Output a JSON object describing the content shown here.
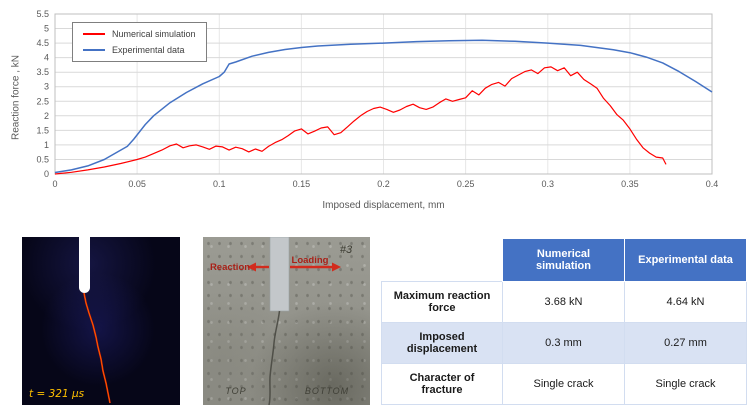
{
  "colors": {
    "numerical_line": "#ff0000",
    "experimental_line": "#4472c4",
    "table_header_bg": "#4472c4",
    "table_band_bg": "#d9e2f3",
    "grid_line": "#d9d9d9",
    "timestamp_text": "#ffc000",
    "crack_red": "#e82200"
  },
  "chart_data": {
    "type": "line",
    "title": "",
    "xlabel": "Imposed displacement, mm",
    "ylabel": "Reaction force , kN",
    "xlim": [
      0,
      0.4
    ],
    "ylim": [
      0,
      5.5
    ],
    "xticks": [
      0,
      0.05,
      0.1,
      0.15,
      0.2,
      0.25,
      0.3,
      0.35,
      0.4
    ],
    "yticks": [
      0,
      0.5,
      1,
      1.5,
      2,
      2.5,
      3,
      3.5,
      4,
      4.5,
      5,
      5.5
    ],
    "grid": true,
    "legend_position": "top-left",
    "series": [
      {
        "name": "Numerical simulation",
        "color": "#ff0000",
        "points": [
          [
            0,
            0
          ],
          [
            0.01,
            0.06
          ],
          [
            0.02,
            0.14
          ],
          [
            0.03,
            0.24
          ],
          [
            0.04,
            0.36
          ],
          [
            0.05,
            0.5
          ],
          [
            0.055,
            0.58
          ],
          [
            0.06,
            0.7
          ],
          [
            0.065,
            0.82
          ],
          [
            0.07,
            0.97
          ],
          [
            0.074,
            1.03
          ],
          [
            0.078,
            0.9
          ],
          [
            0.082,
            0.97
          ],
          [
            0.086,
            1.0
          ],
          [
            0.09,
            0.93
          ],
          [
            0.094,
            0.85
          ],
          [
            0.098,
            0.96
          ],
          [
            0.102,
            0.93
          ],
          [
            0.106,
            0.82
          ],
          [
            0.11,
            0.92
          ],
          [
            0.114,
            0.87
          ],
          [
            0.118,
            0.76
          ],
          [
            0.122,
            0.86
          ],
          [
            0.126,
            0.78
          ],
          [
            0.13,
            0.95
          ],
          [
            0.134,
            1.08
          ],
          [
            0.138,
            1.18
          ],
          [
            0.142,
            1.32
          ],
          [
            0.146,
            1.48
          ],
          [
            0.15,
            1.55
          ],
          [
            0.154,
            1.38
          ],
          [
            0.158,
            1.47
          ],
          [
            0.162,
            1.58
          ],
          [
            0.166,
            1.62
          ],
          [
            0.17,
            1.35
          ],
          [
            0.174,
            1.42
          ],
          [
            0.178,
            1.62
          ],
          [
            0.182,
            1.82
          ],
          [
            0.186,
            2.0
          ],
          [
            0.19,
            2.15
          ],
          [
            0.194,
            2.25
          ],
          [
            0.198,
            2.3
          ],
          [
            0.202,
            2.22
          ],
          [
            0.206,
            2.12
          ],
          [
            0.21,
            2.2
          ],
          [
            0.214,
            2.32
          ],
          [
            0.218,
            2.4
          ],
          [
            0.222,
            2.28
          ],
          [
            0.226,
            2.22
          ],
          [
            0.23,
            2.3
          ],
          [
            0.234,
            2.45
          ],
          [
            0.238,
            2.58
          ],
          [
            0.242,
            2.5
          ],
          [
            0.246,
            2.56
          ],
          [
            0.25,
            2.62
          ],
          [
            0.254,
            2.86
          ],
          [
            0.258,
            2.72
          ],
          [
            0.262,
            2.95
          ],
          [
            0.266,
            3.08
          ],
          [
            0.27,
            3.15
          ],
          [
            0.274,
            3.02
          ],
          [
            0.278,
            3.28
          ],
          [
            0.282,
            3.4
          ],
          [
            0.286,
            3.52
          ],
          [
            0.29,
            3.58
          ],
          [
            0.294,
            3.45
          ],
          [
            0.298,
            3.65
          ],
          [
            0.302,
            3.68
          ],
          [
            0.306,
            3.55
          ],
          [
            0.31,
            3.65
          ],
          [
            0.314,
            3.38
          ],
          [
            0.318,
            3.5
          ],
          [
            0.322,
            3.25
          ],
          [
            0.326,
            3.1
          ],
          [
            0.33,
            2.95
          ],
          [
            0.334,
            2.6
          ],
          [
            0.338,
            2.35
          ],
          [
            0.342,
            2.05
          ],
          [
            0.346,
            1.85
          ],
          [
            0.35,
            1.55
          ],
          [
            0.354,
            1.2
          ],
          [
            0.358,
            0.9
          ],
          [
            0.362,
            0.72
          ],
          [
            0.366,
            0.58
          ],
          [
            0.37,
            0.55
          ],
          [
            0.372,
            0.33
          ]
        ]
      },
      {
        "name": "Experimental data",
        "color": "#4472c4",
        "points": [
          [
            0,
            0.05
          ],
          [
            0.01,
            0.14
          ],
          [
            0.02,
            0.28
          ],
          [
            0.03,
            0.5
          ],
          [
            0.04,
            0.82
          ],
          [
            0.044,
            0.95
          ],
          [
            0.048,
            1.2
          ],
          [
            0.055,
            1.7
          ],
          [
            0.06,
            2.0
          ],
          [
            0.07,
            2.45
          ],
          [
            0.08,
            2.8
          ],
          [
            0.09,
            3.1
          ],
          [
            0.1,
            3.35
          ],
          [
            0.103,
            3.5
          ],
          [
            0.106,
            3.78
          ],
          [
            0.11,
            3.85
          ],
          [
            0.12,
            4.05
          ],
          [
            0.13,
            4.18
          ],
          [
            0.14,
            4.28
          ],
          [
            0.15,
            4.35
          ],
          [
            0.16,
            4.4
          ],
          [
            0.18,
            4.46
          ],
          [
            0.2,
            4.5
          ],
          [
            0.22,
            4.55
          ],
          [
            0.24,
            4.58
          ],
          [
            0.26,
            4.6
          ],
          [
            0.28,
            4.56
          ],
          [
            0.3,
            4.5
          ],
          [
            0.32,
            4.42
          ],
          [
            0.34,
            4.27
          ],
          [
            0.35,
            4.17
          ],
          [
            0.36,
            4.02
          ],
          [
            0.37,
            3.82
          ],
          [
            0.38,
            3.52
          ],
          [
            0.39,
            3.18
          ],
          [
            0.4,
            2.82
          ]
        ]
      }
    ]
  },
  "simulation_image": {
    "timestamp": "t = 321 μs"
  },
  "photo": {
    "reaction_label": "Reaction",
    "loading_label": "Loading",
    "specimen_id": "#3",
    "top_label": "TOP",
    "bottom_label": "BOTTOM"
  },
  "table": {
    "headers": [
      "",
      "Numerical simulation",
      "Experimental data"
    ],
    "rows": [
      {
        "label": "Maximum reaction force",
        "values": [
          "3.68 kN",
          "4.64 kN"
        ]
      },
      {
        "label": "Imposed displacement",
        "values": [
          "0.3 mm",
          "0.27 mm"
        ]
      },
      {
        "label": "Character of fracture",
        "values": [
          "Single crack",
          "Single crack"
        ]
      }
    ]
  }
}
